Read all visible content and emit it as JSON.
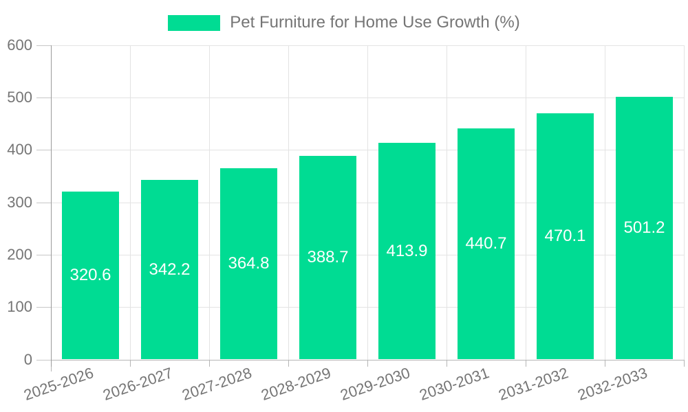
{
  "legend": {
    "label": "Pet Furniture for Home Use Growth (%)"
  },
  "chart_data": {
    "type": "bar",
    "title": "Pet Furniture for Home Use Growth (%)",
    "categories": [
      "2025-2026",
      "2026-2027",
      "2027-2028",
      "2028-2029",
      "2029-2030",
      "2030-2031",
      "2031-2032",
      "2032-2033"
    ],
    "values": [
      320.6,
      342.2,
      364.8,
      388.7,
      413.9,
      440.7,
      470.1,
      501.2
    ],
    "value_labels": [
      "320.6",
      "342.2",
      "364.8",
      "388.7",
      "413.9",
      "440.7",
      "470.1",
      "501.2"
    ],
    "xlabel": "",
    "ylabel": "",
    "ylim": [
      0,
      600
    ],
    "y_ticks": [
      0,
      100,
      200,
      300,
      400,
      500,
      600
    ],
    "grid": true,
    "legend_position": "top",
    "x_tick_angle_deg": -19,
    "bar_color": "#00DC93",
    "value_label_color": "#FFFFFF",
    "text_color": "#757575",
    "grid_color": "#E3E3E3",
    "axis_color": "#9A9A9A"
  }
}
